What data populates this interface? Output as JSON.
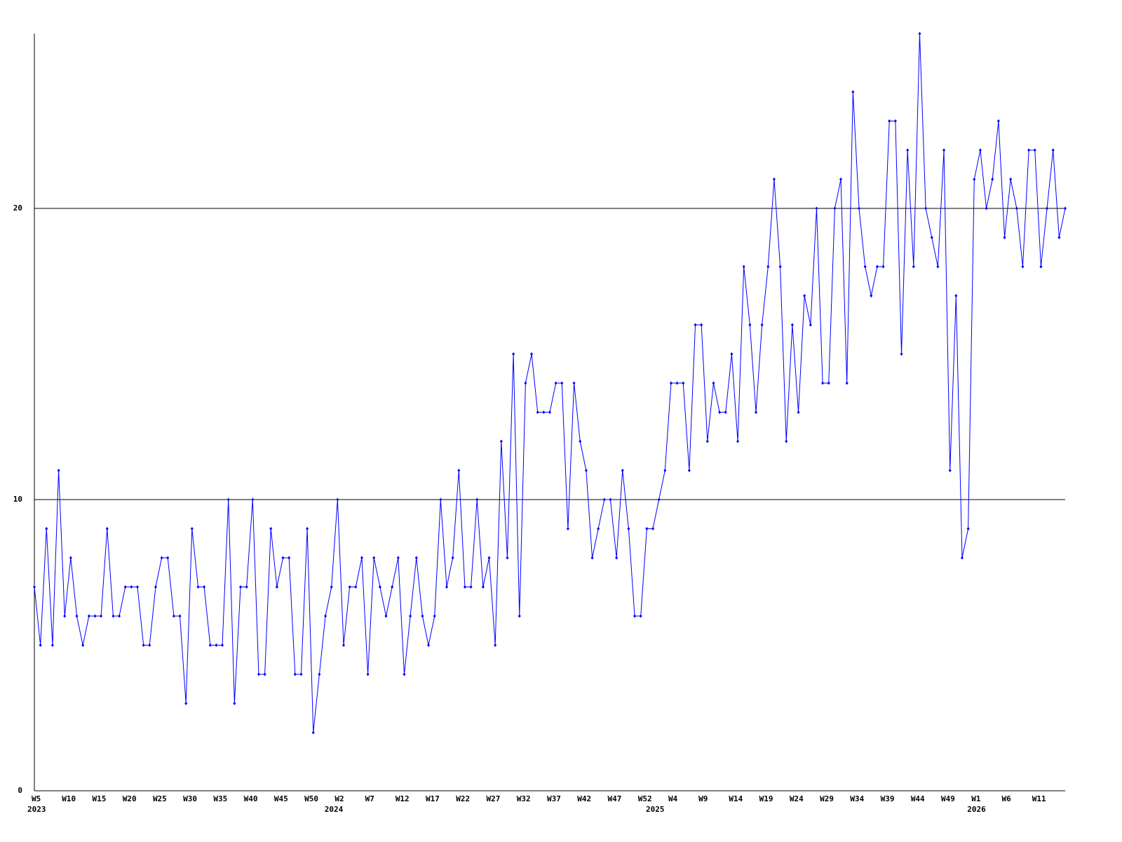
{
  "chart_data": {
    "type": "line",
    "categories": [
      "W5",
      null,
      null,
      null,
      null,
      "W10",
      null,
      null,
      null,
      null,
      "W15",
      null,
      null,
      null,
      null,
      "W20",
      null,
      null,
      null,
      null,
      "W25",
      null,
      null,
      null,
      null,
      "W30",
      null,
      null,
      null,
      null,
      "W35",
      null,
      null,
      null,
      null,
      "W40",
      null,
      null,
      null,
      null,
      "W45",
      null,
      null,
      null,
      null,
      "W50",
      null,
      null,
      null,
      null,
      "W2",
      null,
      null,
      null,
      null,
      "W7",
      null,
      null,
      null,
      null,
      "W12",
      null,
      null,
      null,
      null,
      "W17",
      null,
      null,
      null,
      null,
      "W22",
      null,
      null,
      null,
      null,
      "W27",
      null,
      null,
      null,
      null,
      "W32",
      null,
      null,
      null,
      null,
      "W37",
      null,
      null,
      null,
      null,
      "W42",
      null,
      null,
      null,
      null,
      "W47",
      null,
      null,
      null,
      null,
      "W52",
      null,
      null,
      null,
      null,
      "W4",
      null,
      null,
      null,
      null,
      "W9",
      null,
      null,
      null,
      null,
      "W14",
      null,
      null,
      null,
      null,
      "W19",
      null,
      null,
      null,
      null,
      "W24",
      null,
      null,
      null,
      null,
      "W29",
      null,
      null,
      null,
      null,
      "W34",
      null,
      null,
      null,
      null,
      "W39",
      null,
      null,
      null,
      null,
      "W44",
      null,
      null,
      null,
      null,
      "W49",
      null,
      null,
      null,
      null,
      "W1",
      null,
      null,
      null,
      null,
      "W6",
      null,
      null,
      null,
      null,
      "W11",
      null,
      null,
      null,
      null,
      null
    ],
    "category_years": [
      "2023",
      null,
      null,
      null,
      null,
      null,
      null,
      null,
      null,
      null,
      null,
      null,
      null,
      null,
      null,
      null,
      null,
      null,
      null,
      null,
      null,
      null,
      null,
      null,
      null,
      null,
      null,
      null,
      null,
      null,
      null,
      null,
      null,
      null,
      null,
      null,
      null,
      null,
      null,
      null,
      null,
      null,
      null,
      null,
      null,
      null,
      null,
      null,
      null,
      "2024",
      null,
      null,
      null,
      null,
      null,
      null,
      null,
      null,
      null,
      null,
      null,
      null,
      null,
      null,
      null,
      null,
      null,
      null,
      null,
      null,
      null,
      null,
      null,
      null,
      null,
      null,
      null,
      null,
      null,
      null,
      null,
      null,
      null,
      null,
      null,
      null,
      null,
      null,
      null,
      null,
      null,
      null,
      null,
      null,
      null,
      null,
      null,
      null,
      null,
      null,
      null,
      null,
      "2025",
      null,
      null,
      null,
      null,
      null,
      null,
      null,
      null,
      null,
      null,
      null,
      null,
      null,
      null,
      null,
      null,
      null,
      null,
      null,
      null,
      null,
      null,
      null,
      null,
      null,
      null,
      null,
      null,
      null,
      null,
      null,
      null,
      null,
      null,
      null,
      null,
      null,
      null,
      null,
      null,
      null,
      null,
      null,
      null,
      null,
      null,
      null,
      null,
      null,
      null,
      null,
      null,
      "2026",
      null,
      null,
      null,
      null,
      null,
      null,
      null,
      null,
      null,
      null,
      null,
      null,
      null,
      null,
      null
    ],
    "values": [
      7,
      5,
      9,
      5,
      11,
      6,
      8,
      6,
      5,
      6,
      6,
      6,
      9,
      6,
      6,
      7,
      7,
      7,
      5,
      5,
      7,
      8,
      8,
      6,
      6,
      3,
      9,
      7,
      7,
      5,
      5,
      5,
      10,
      3,
      7,
      7,
      10,
      4,
      4,
      9,
      7,
      8,
      8,
      4,
      4,
      9,
      2,
      4,
      6,
      7,
      10,
      5,
      7,
      7,
      8,
      4,
      8,
      7,
      6,
      7,
      8,
      4,
      6,
      8,
      6,
      5,
      6,
      10,
      7,
      8,
      11,
      7,
      7,
      10,
      7,
      8,
      5,
      12,
      8,
      15,
      6,
      14,
      15,
      13,
      13,
      13,
      14,
      14,
      9,
      14,
      12,
      11,
      8,
      9,
      10,
      10,
      8,
      11,
      9,
      6,
      6,
      9,
      9,
      10,
      11,
      14,
      14,
      14,
      11,
      16,
      16,
      12,
      14,
      13,
      13,
      15,
      12,
      18,
      16,
      13,
      16,
      18,
      21,
      18,
      12,
      16,
      13,
      17,
      16,
      20,
      14,
      14,
      20,
      21,
      14,
      24,
      20,
      18,
      17,
      18,
      18,
      23,
      23,
      15,
      22,
      18,
      26,
      20,
      19,
      18,
      22,
      11,
      17,
      8,
      9,
      21,
      22,
      20,
      21,
      23,
      19,
      21,
      20,
      18,
      22,
      22,
      18,
      20,
      22,
      19,
      20
    ],
    "color": "#0000ff",
    "ylim": [
      0,
      26
    ],
    "yticks": [
      0,
      10,
      20
    ],
    "grid": true
  }
}
